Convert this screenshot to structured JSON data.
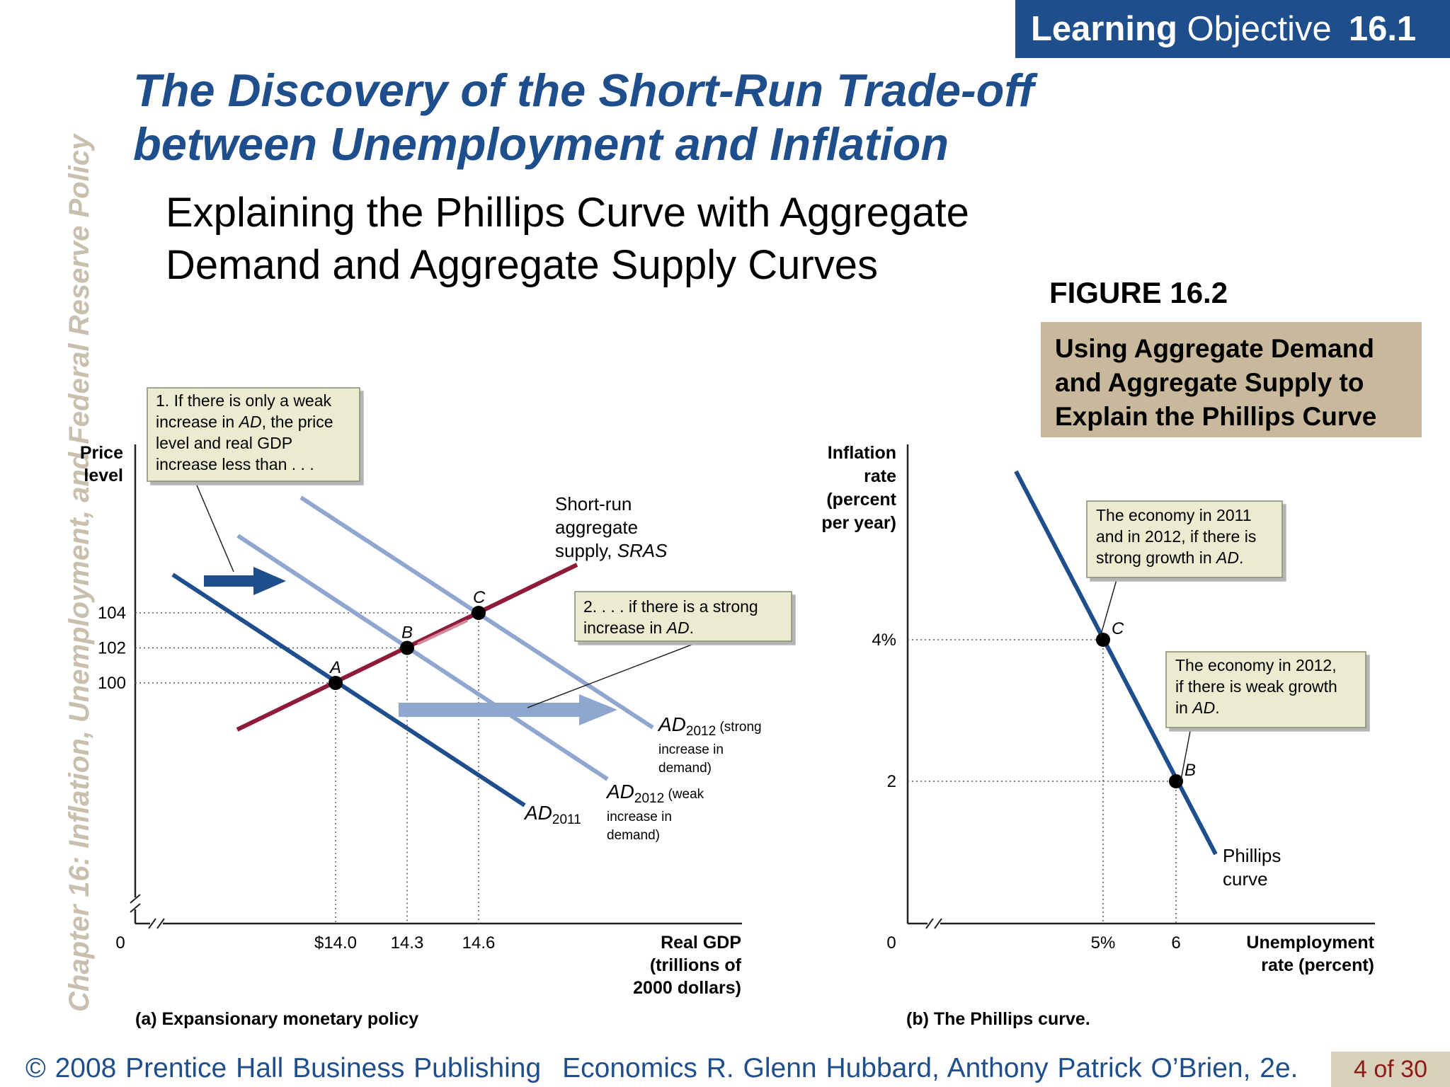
{
  "banner": {
    "word1": "Learning",
    "word2": "Objective",
    "number": "16.1"
  },
  "side_title": "Chapter 16:  Inflation, Unemployment, and Federal Reserve Policy",
  "title": {
    "line1": "The Discovery of the Short-Run Trade-off",
    "line2": "between Unemployment and Inflation"
  },
  "subtitle": {
    "line1": "Explaining the Phillips Curve with Aggregate",
    "line2": "Demand and Aggregate Supply Curves"
  },
  "figure": {
    "number": "FIGURE 16.2",
    "caption": [
      "Using Aggregate Demand",
      "and Aggregate Supply to",
      "Explain the Phillips Curve"
    ]
  },
  "footer": {
    "copyright": "© 2008 Prentice Hall Business Publishing",
    "book": "Economics  R. Glenn Hubbard, Anthony Patrick O’Brien, 2e.",
    "page": "4 of 30"
  },
  "colors": {
    "dark_blue": "#1f4e8c",
    "light_blue": "#8fa6cf",
    "sras_red": "#8e1b3a",
    "note_bg": "#ebebcf"
  },
  "chart_data": [
    {
      "type": "line",
      "panel_label": "(a) Expansionary monetary policy",
      "ylabel": [
        "Price",
        "level"
      ],
      "xlabel": [
        "Real GDP",
        "(trillions of",
        "2000 dollars)"
      ],
      "origin_label": "0",
      "x_ticks": [
        "$14.0",
        "14.3",
        "14.6"
      ],
      "x_tick_values": [
        14.0,
        14.3,
        14.6
      ],
      "y_ticks": [
        "104",
        "102",
        "100"
      ],
      "y_tick_values": [
        104,
        102,
        100
      ],
      "points": [
        {
          "label": "A",
          "x": 14.0,
          "y": 100
        },
        {
          "label": "B",
          "x": 14.3,
          "y": 102
        },
        {
          "label": "C",
          "x": 14.6,
          "y": 104
        }
      ],
      "curves": {
        "sras": [
          "Short-run",
          "aggregate",
          "supply, "
        ],
        "sras_italic": "SRAS",
        "ad2011_base": "AD",
        "ad2011_sub": "2011",
        "ad_weak_base": "AD",
        "ad_weak_sub": "2012",
        "ad_weak_note": [
          " (weak",
          "increase in",
          "demand)"
        ],
        "ad_strong_base": "AD",
        "ad_strong_sub": "2012",
        "ad_strong_note": [
          " (strong",
          "increase in",
          "demand)"
        ]
      },
      "notes": {
        "weak": [
          "1. If there is only a weak",
          "increase in ",
          "AD",
          ", the price",
          "level and real GDP",
          "increase less than . . ."
        ],
        "strong": [
          "2.  . . . if there is a strong",
          "increase in ",
          "AD",
          "."
        ]
      }
    },
    {
      "type": "line",
      "panel_label": "(b) The Phillips curve.",
      "ylabel": [
        "Inflation",
        "rate",
        "(percent",
        "per year)"
      ],
      "xlabel": [
        "Unemployment",
        "rate (percent)"
      ],
      "origin_label": "0",
      "x_ticks": [
        "5%",
        "6"
      ],
      "x_tick_values": [
        5,
        6
      ],
      "y_ticks": [
        "4%",
        "2"
      ],
      "y_tick_values": [
        4,
        2
      ],
      "points": [
        {
          "label": "C",
          "x": 5,
          "y": 4
        },
        {
          "label": "B",
          "x": 6,
          "y": 2
        }
      ],
      "curve_label": [
        "Phillips",
        "curve"
      ],
      "notes": {
        "strong": [
          "The economy in 2011",
          "and in 2012, if there is",
          "strong growth in ",
          "AD",
          "."
        ],
        "weak": [
          "The economy in 2012,",
          "if there is weak growth",
          "in ",
          "AD",
          "."
        ]
      }
    }
  ]
}
